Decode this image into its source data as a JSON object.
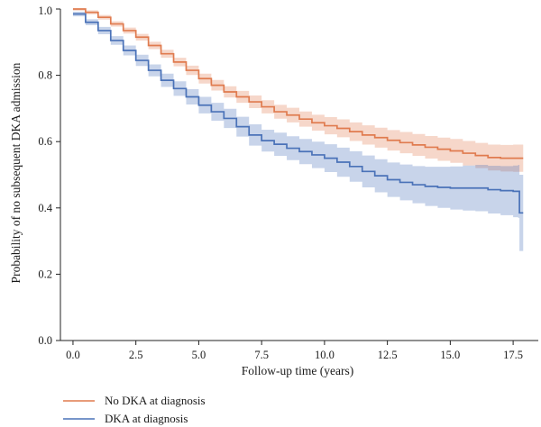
{
  "chart_data": {
    "type": "line",
    "title": "",
    "xlabel": "Follow-up time (years)",
    "ylabel": "Probability of no subsequent DKA admission",
    "xlim": [
      -0.5,
      18.5
    ],
    "ylim": [
      0.0,
      1.0
    ],
    "x_ticks": [
      "0.0",
      "2.5",
      "5.0",
      "7.5",
      "10.0",
      "12.5",
      "15.0",
      "17.5"
    ],
    "y_ticks": [
      "0.0",
      "0.2",
      "0.4",
      "0.6",
      "0.8",
      "1.0"
    ],
    "grid": false,
    "legend_position": "bottom-left",
    "series": [
      {
        "name": "No DKA at diagnosis",
        "color": "#e07b4f",
        "x": [
          0,
          0.5,
          1.0,
          1.5,
          2.0,
          2.5,
          3.0,
          3.5,
          4.0,
          4.5,
          5.0,
          5.5,
          6.0,
          6.5,
          7.0,
          7.5,
          8.0,
          8.5,
          9.0,
          9.5,
          10.0,
          10.5,
          11.0,
          11.5,
          12.0,
          12.5,
          13.0,
          13.5,
          14.0,
          14.5,
          15.0,
          15.5,
          16.0,
          16.5,
          17.0,
          17.5,
          17.9
        ],
        "y": [
          1.0,
          0.99,
          0.975,
          0.955,
          0.935,
          0.915,
          0.89,
          0.865,
          0.84,
          0.815,
          0.79,
          0.77,
          0.75,
          0.735,
          0.72,
          0.705,
          0.69,
          0.68,
          0.668,
          0.657,
          0.648,
          0.64,
          0.63,
          0.62,
          0.612,
          0.604,
          0.597,
          0.59,
          0.583,
          0.577,
          0.572,
          0.565,
          0.558,
          0.552,
          0.55,
          0.55,
          0.55
        ],
        "lower": [
          0.995,
          0.984,
          0.968,
          0.947,
          0.926,
          0.905,
          0.879,
          0.853,
          0.827,
          0.801,
          0.775,
          0.754,
          0.733,
          0.717,
          0.701,
          0.685,
          0.669,
          0.658,
          0.645,
          0.633,
          0.622,
          0.613,
          0.602,
          0.591,
          0.582,
          0.573,
          0.565,
          0.557,
          0.549,
          0.542,
          0.536,
          0.528,
          0.52,
          0.513,
          0.51,
          0.509,
          0.508
        ],
        "upper": [
          1.0,
          0.996,
          0.982,
          0.963,
          0.944,
          0.925,
          0.901,
          0.877,
          0.853,
          0.829,
          0.805,
          0.786,
          0.767,
          0.753,
          0.739,
          0.725,
          0.711,
          0.702,
          0.691,
          0.681,
          0.674,
          0.667,
          0.658,
          0.649,
          0.642,
          0.635,
          0.629,
          0.623,
          0.617,
          0.612,
          0.608,
          0.602,
          0.596,
          0.591,
          0.59,
          0.591,
          0.592
        ]
      },
      {
        "name": "DKA at diagnosis",
        "color": "#4a72b8",
        "x": [
          0,
          0.5,
          1.0,
          1.5,
          2.0,
          2.5,
          3.0,
          3.5,
          4.0,
          4.5,
          5.0,
          5.5,
          6.0,
          6.5,
          7.0,
          7.5,
          8.0,
          8.5,
          9.0,
          9.5,
          10.0,
          10.5,
          11.0,
          11.5,
          12.0,
          12.5,
          13.0,
          13.5,
          14.0,
          14.5,
          15.0,
          15.5,
          16.0,
          16.5,
          17.0,
          17.5,
          17.7,
          17.75,
          17.9
        ],
        "y": [
          0.985,
          0.96,
          0.935,
          0.905,
          0.875,
          0.845,
          0.815,
          0.785,
          0.76,
          0.735,
          0.71,
          0.69,
          0.67,
          0.645,
          0.62,
          0.603,
          0.592,
          0.58,
          0.57,
          0.56,
          0.55,
          0.538,
          0.525,
          0.51,
          0.497,
          0.485,
          0.477,
          0.47,
          0.465,
          0.462,
          0.46,
          0.46,
          0.46,
          0.455,
          0.452,
          0.45,
          0.45,
          0.385,
          0.385
        ],
        "lower": [
          0.978,
          0.951,
          0.924,
          0.892,
          0.86,
          0.828,
          0.797,
          0.765,
          0.738,
          0.712,
          0.685,
          0.663,
          0.641,
          0.615,
          0.588,
          0.57,
          0.557,
          0.544,
          0.532,
          0.52,
          0.508,
          0.494,
          0.479,
          0.462,
          0.447,
          0.433,
          0.423,
          0.414,
          0.406,
          0.4,
          0.395,
          0.392,
          0.39,
          0.383,
          0.378,
          0.372,
          0.37,
          0.27,
          0.27
        ],
        "upper": [
          0.992,
          0.969,
          0.946,
          0.918,
          0.89,
          0.862,
          0.833,
          0.805,
          0.782,
          0.758,
          0.735,
          0.717,
          0.699,
          0.675,
          0.652,
          0.636,
          0.627,
          0.616,
          0.608,
          0.6,
          0.592,
          0.582,
          0.571,
          0.558,
          0.547,
          0.537,
          0.531,
          0.526,
          0.524,
          0.524,
          0.525,
          0.528,
          0.53,
          0.527,
          0.526,
          0.528,
          0.53,
          0.5,
          0.5
        ]
      }
    ]
  }
}
